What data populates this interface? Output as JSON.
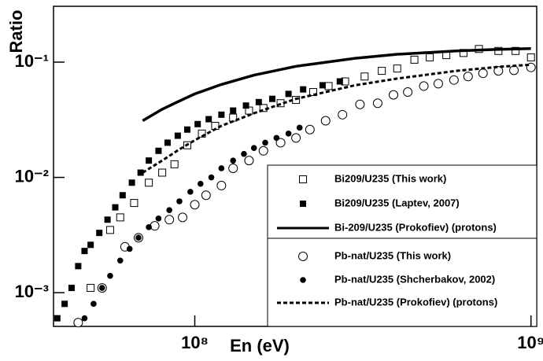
{
  "chart_data": {
    "type": "scatter",
    "xlabel": "En (eV)",
    "ylabel": "Ratio",
    "xlog": true,
    "ylog": true,
    "xlim": [
      38000000.0,
      1040000000.0
    ],
    "ylim": [
      0.00051,
      0.305
    ],
    "xticks": [
      {
        "value": 100000000.0,
        "label": "10⁸"
      },
      {
        "value": 1000000000.0,
        "label": "10⁹"
      }
    ],
    "yticks": [
      {
        "value": 0.001,
        "label": "10⁻³"
      },
      {
        "value": 0.01,
        "label": "10⁻²"
      },
      {
        "value": 0.1,
        "label": "10⁻¹"
      }
    ],
    "series": [
      {
        "name": "Bi209/U235 (This work)",
        "marker": "open-square",
        "color": "#000",
        "x": [
          49000000.0,
          56000000.0,
          60000000.0,
          66000000.0,
          73000000.0,
          80000000.0,
          87000000.0,
          95000000.0,
          105000000.0,
          115000000.0,
          130000000.0,
          145000000.0,
          160000000.0,
          180000000.0,
          200000000.0,
          225000000.0,
          250000000.0,
          280000000.0,
          320000000.0,
          360000000.0,
          400000000.0,
          450000000.0,
          500000000.0,
          560000000.0,
          630000000.0,
          700000000.0,
          800000000.0,
          900000000.0,
          1000000000.0
        ],
        "values": [
          0.0011,
          0.0035,
          0.0045,
          0.006,
          0.009,
          0.011,
          0.013,
          0.019,
          0.024,
          0.028,
          0.033,
          0.038,
          0.04,
          0.044,
          0.047,
          0.055,
          0.062,
          0.068,
          0.075,
          0.084,
          0.088,
          0.105,
          0.11,
          0.115,
          0.12,
          0.13,
          0.125,
          0.125,
          0.11
        ]
      },
      {
        "name": "Bi209/U235 (Laptev, 2007)",
        "marker": "filled-square",
        "color": "#000",
        "x": [
          39000000.0,
          41000000.0,
          43000000.0,
          45000000.0,
          47000000.0,
          49000000.0,
          52000000.0,
          55000000.0,
          58000000.0,
          61000000.0,
          65000000.0,
          69000000.0,
          73000000.0,
          78000000.0,
          83000000.0,
          89000000.0,
          95000000.0,
          102000000.0,
          110000000.0,
          120000000.0,
          130000000.0,
          142000000.0,
          155000000.0,
          170000000.0,
          190000000.0,
          210000000.0,
          240000000.0,
          270000000.0
        ],
        "values": [
          0.0006,
          0.0008,
          0.0011,
          0.0017,
          0.0023,
          0.0026,
          0.0033,
          0.0043,
          0.0055,
          0.007,
          0.009,
          0.011,
          0.014,
          0.017,
          0.02,
          0.023,
          0.026,
          0.029,
          0.032,
          0.035,
          0.038,
          0.042,
          0.045,
          0.048,
          0.053,
          0.058,
          0.063,
          0.068
        ]
      },
      {
        "name": "Bi-209/U235 (Prokofiev) (protons)",
        "marker": "solid-line",
        "color": "#000",
        "x": [
          70000000.0,
          80000000.0,
          90000000.0,
          100000000.0,
          120000000.0,
          150000000.0,
          200000000.0,
          300000000.0,
          400000000.0,
          600000000.0,
          800000000.0,
          1000000000.0
        ],
        "values": [
          0.031,
          0.039,
          0.046,
          0.053,
          0.064,
          0.077,
          0.092,
          0.108,
          0.117,
          0.125,
          0.129,
          0.131
        ]
      },
      {
        "name": "Pb-nat/U235 (This work)",
        "marker": "open-circle",
        "color": "#000",
        "x": [
          45000000.0,
          53000000.0,
          62000000.0,
          68000000.0,
          76000000.0,
          84000000.0,
          92000000.0,
          100000000.0,
          108000000.0,
          120000000.0,
          130000000.0,
          145000000.0,
          160000000.0,
          180000000.0,
          200000000.0,
          220000000.0,
          245000000.0,
          275000000.0,
          310000000.0,
          350000000.0,
          390000000.0,
          430000000.0,
          480000000.0,
          530000000.0,
          590000000.0,
          650000000.0,
          720000000.0,
          800000000.0,
          890000000.0,
          1000000000.0
        ],
        "values": [
          0.00055,
          0.0011,
          0.0025,
          0.003,
          0.0038,
          0.0043,
          0.0045,
          0.0058,
          0.007,
          0.0085,
          0.012,
          0.014,
          0.017,
          0.02,
          0.022,
          0.026,
          0.031,
          0.035,
          0.043,
          0.044,
          0.052,
          0.055,
          0.062,
          0.065,
          0.07,
          0.075,
          0.08,
          0.084,
          0.085,
          0.09
        ]
      },
      {
        "name": "Pb-nat/U235 (Shcherbakov, 2002)",
        "marker": "filled-circle",
        "color": "#000",
        "x": [
          47000000.0,
          50000000.0,
          53000000.0,
          56000000.0,
          60000000.0,
          64000000.0,
          68000000.0,
          73000000.0,
          78000000.0,
          84000000.0,
          90000000.0,
          97000000.0,
          104000000.0,
          112000000.0,
          120000000.0,
          130000000.0,
          140000000.0,
          150000000.0,
          162000000.0,
          175000000.0,
          190000000.0,
          205000000.0
        ],
        "values": [
          0.0006,
          0.0008,
          0.0011,
          0.0014,
          0.0019,
          0.0024,
          0.003,
          0.0037,
          0.0044,
          0.0052,
          0.0062,
          0.0075,
          0.0088,
          0.01,
          0.012,
          0.014,
          0.016,
          0.018,
          0.02,
          0.022,
          0.024,
          0.027
        ]
      },
      {
        "name": "Pb-nat/U235 (Prokofiev) (protons)",
        "marker": "dashed-line",
        "color": "#000",
        "x": [
          70000000.0,
          80000000.0,
          90000000.0,
          100000000.0,
          120000000.0,
          150000000.0,
          200000000.0,
          300000000.0,
          400000000.0,
          600000000.0,
          800000000.0,
          1000000000.0
        ],
        "values": [
          0.011,
          0.014,
          0.0175,
          0.021,
          0.028,
          0.036,
          0.048,
          0.063,
          0.072,
          0.084,
          0.091,
          0.095
        ]
      }
    ]
  }
}
